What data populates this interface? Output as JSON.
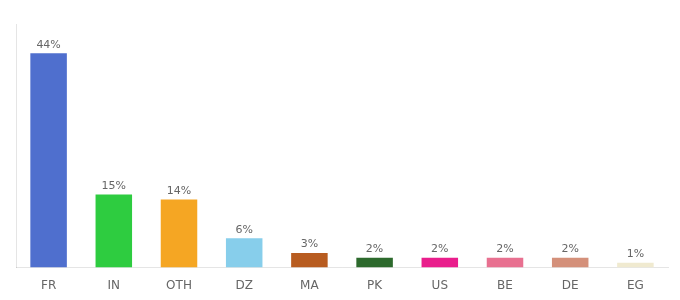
{
  "chart_data": {
    "type": "bar",
    "categories": [
      "FR",
      "IN",
      "OTH",
      "DZ",
      "MA",
      "PK",
      "US",
      "BE",
      "DE",
      "EG"
    ],
    "values": [
      44,
      15,
      14,
      6,
      3,
      2,
      2,
      2,
      2,
      1
    ],
    "value_labels": [
      "44%",
      "15%",
      "14%",
      "6%",
      "3%",
      "2%",
      "2%",
      "2%",
      "2%",
      "1%"
    ],
    "data_labels": true,
    "colors": [
      "#4f6fce",
      "#2ecc40",
      "#f5a623",
      "#87ceeb",
      "#b85c20",
      "#2d6a2d",
      "#e91e8c",
      "#e87090",
      "#d4907a",
      "#f0ead0"
    ],
    "ylim": [
      0,
      50
    ],
    "tick_labels": "x",
    "grid": false
  }
}
